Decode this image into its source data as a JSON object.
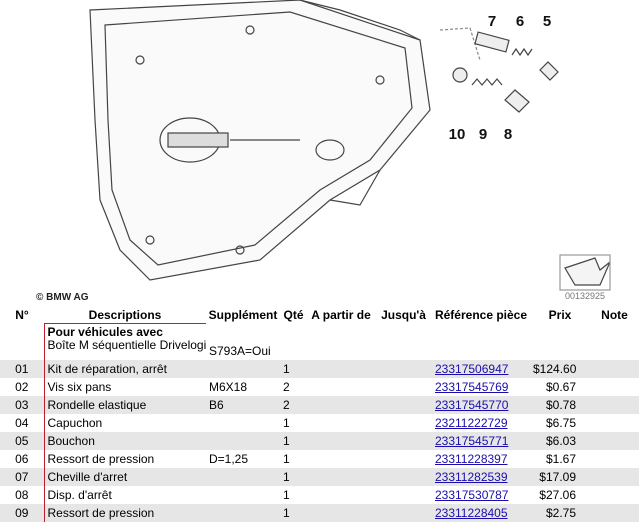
{
  "diagram": {
    "callouts": [
      "7",
      "6",
      "5",
      "10",
      "9",
      "8"
    ],
    "copyright": "© BMW AG",
    "image_id": "00132925"
  },
  "table": {
    "headers": [
      "N°",
      "Descriptions",
      "Supplément",
      "Qté",
      "A partir de",
      "Jusqu'à",
      "Référence pièce",
      "Prix",
      "Note"
    ],
    "group": {
      "title": "Pour véhicules avec",
      "description": "Boîte M séquentielle Drivelogic",
      "supplement": "S793A=Oui"
    },
    "rows": [
      [
        "01",
        "Kit de réparation, arrêt",
        "",
        "1",
        "",
        "",
        "23317506947",
        "$124.60",
        ""
      ],
      [
        "02",
        "Vis six pans",
        "M6X18",
        "2",
        "",
        "",
        "23317545769",
        "$0.67",
        ""
      ],
      [
        "03",
        "Rondelle elastique",
        "B6",
        "2",
        "",
        "",
        "23317545770",
        "$0.78",
        ""
      ],
      [
        "04",
        "Capuchon",
        "",
        "1",
        "",
        "",
        "23211222729",
        "$6.75",
        ""
      ],
      [
        "05",
        "Bouchon",
        "",
        "1",
        "",
        "",
        "23317545771",
        "$6.03",
        ""
      ],
      [
        "06",
        "Ressort de pression",
        "D=1,25",
        "1",
        "",
        "",
        "23311228397",
        "$1.67",
        ""
      ],
      [
        "07",
        "Cheville d'arret",
        "",
        "1",
        "",
        "",
        "23311282539",
        "$17.09",
        ""
      ],
      [
        "08",
        "Disp. d'arrêt",
        "",
        "1",
        "",
        "",
        "23317530787",
        "$27.06",
        ""
      ],
      [
        "09",
        "Ressort de pression",
        "",
        "1",
        "",
        "",
        "23311228405",
        "$2.75",
        ""
      ]
    ]
  }
}
